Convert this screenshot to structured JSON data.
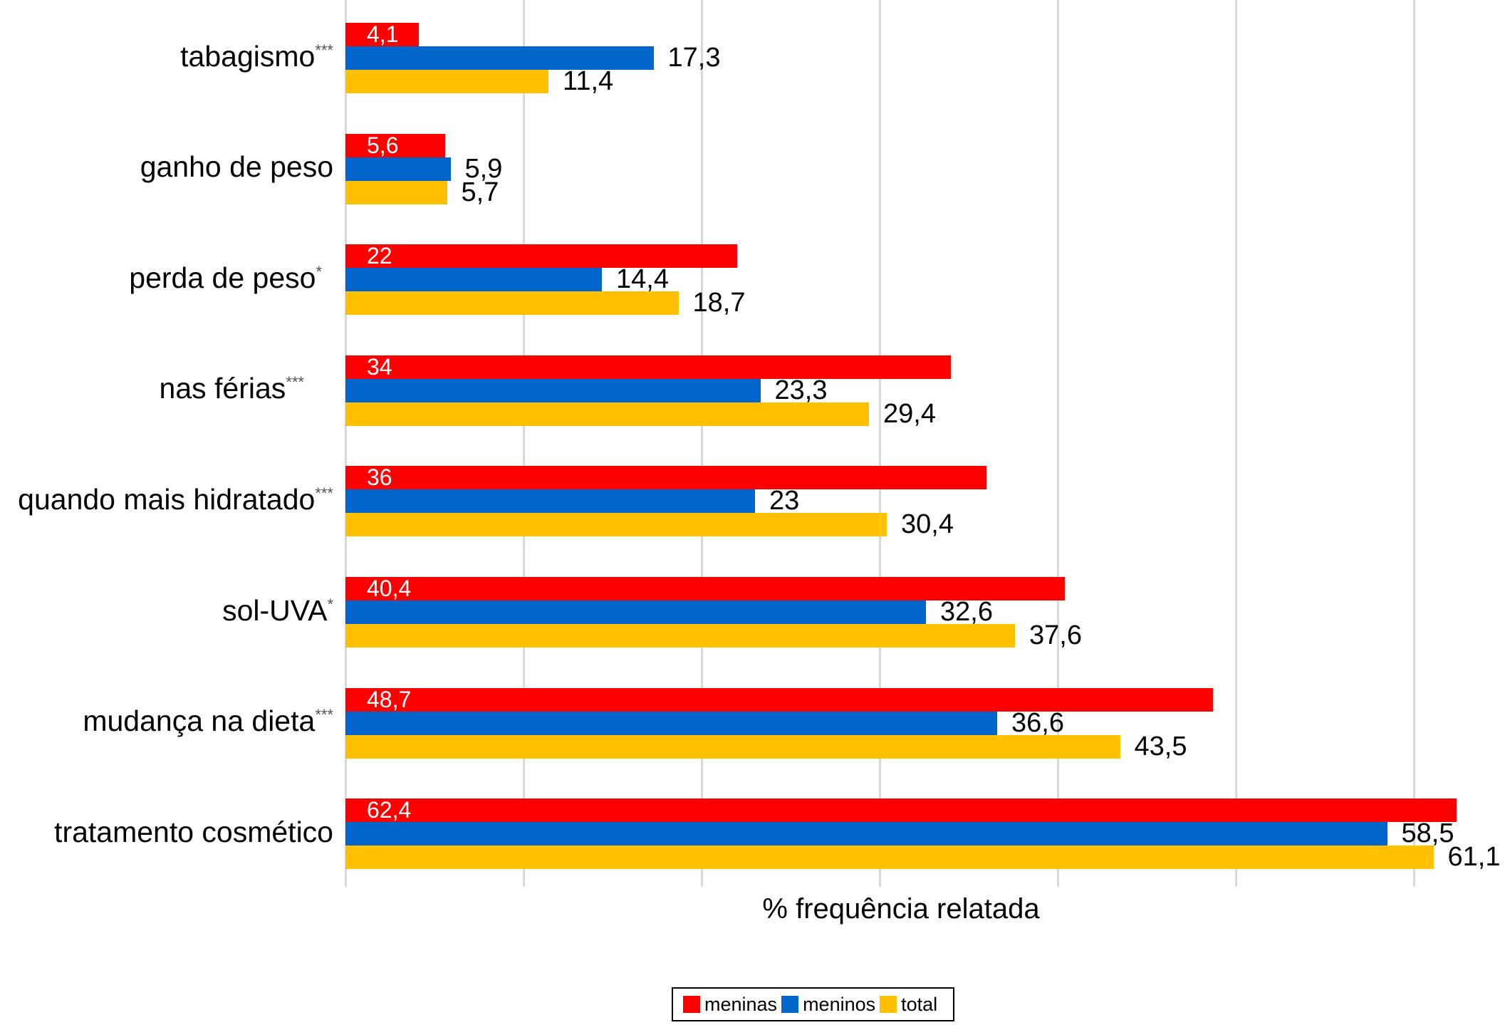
{
  "chart_data": {
    "type": "bar",
    "orientation": "horizontal",
    "categories": [
      "tabagismo",
      "ganho de peso",
      "perda de peso",
      "nas férias",
      "quando mais hidratado",
      "sol-UVA",
      "mudança na dieta",
      "tratamento cosmético"
    ],
    "category_markers": [
      "***",
      "",
      "*",
      "***",
      "***",
      "*",
      "***",
      ""
    ],
    "series": [
      {
        "name": "meninas",
        "color": "#ff0000",
        "values": [
          4.1,
          5.6,
          22,
          34,
          36,
          40.4,
          48.7,
          62.4
        ],
        "value_labels": [
          "4,1",
          "5,6",
          "22",
          "34",
          "36",
          "40,4",
          "48,7",
          "62,4"
        ]
      },
      {
        "name": "meninos",
        "color": "#0066cc",
        "values": [
          17.3,
          5.9,
          14.4,
          23.3,
          23,
          32.6,
          36.6,
          58.5
        ],
        "value_labels": [
          "17,3",
          "5,9",
          "14,4",
          "23,3",
          "23",
          "32,6",
          "36,6",
          "58,5"
        ]
      },
      {
        "name": "total",
        "color": "#ffc000",
        "values": [
          11.4,
          5.7,
          18.7,
          29.4,
          30.4,
          37.6,
          43.5,
          61.1
        ],
        "value_labels": [
          "11,4",
          "5,7",
          "18,7",
          "29,4",
          "30,4",
          "37,6",
          "43,5",
          "61,1"
        ]
      }
    ],
    "xlabel": "% frequência relatada",
    "xlim": [
      0,
      65
    ],
    "xticks": [
      0,
      10,
      20,
      30,
      40,
      50,
      60
    ],
    "grid": true,
    "legend_position": "bottom"
  }
}
